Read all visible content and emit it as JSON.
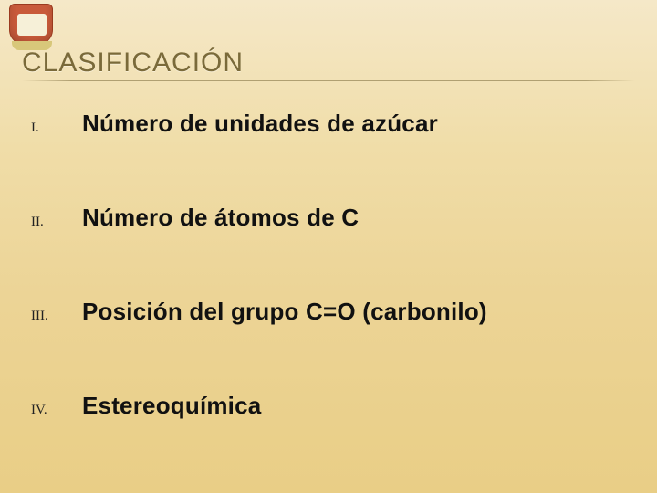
{
  "title": "CLASIFICACIÓN",
  "items": [
    {
      "marker": "I.",
      "text": "Número de unidades de azúcar"
    },
    {
      "marker": "II.",
      "text": "Número de átomos de C"
    },
    {
      "marker": "III.",
      "text": "Posición del grupo C=O (carbonilo)"
    },
    {
      "marker": "IV.",
      "text": "Estereoquímica"
    }
  ],
  "colors": {
    "bg_top": "#f5e8c8",
    "bg_bottom": "#e9ce86",
    "title_color": "#7a6a3a",
    "text_color": "#111111",
    "logo_primary": "#c85a3a",
    "logo_inner": "#f6f0d8"
  },
  "typography": {
    "title_fontsize": 30,
    "item_fontsize": 26,
    "marker_fontsize": 15
  }
}
